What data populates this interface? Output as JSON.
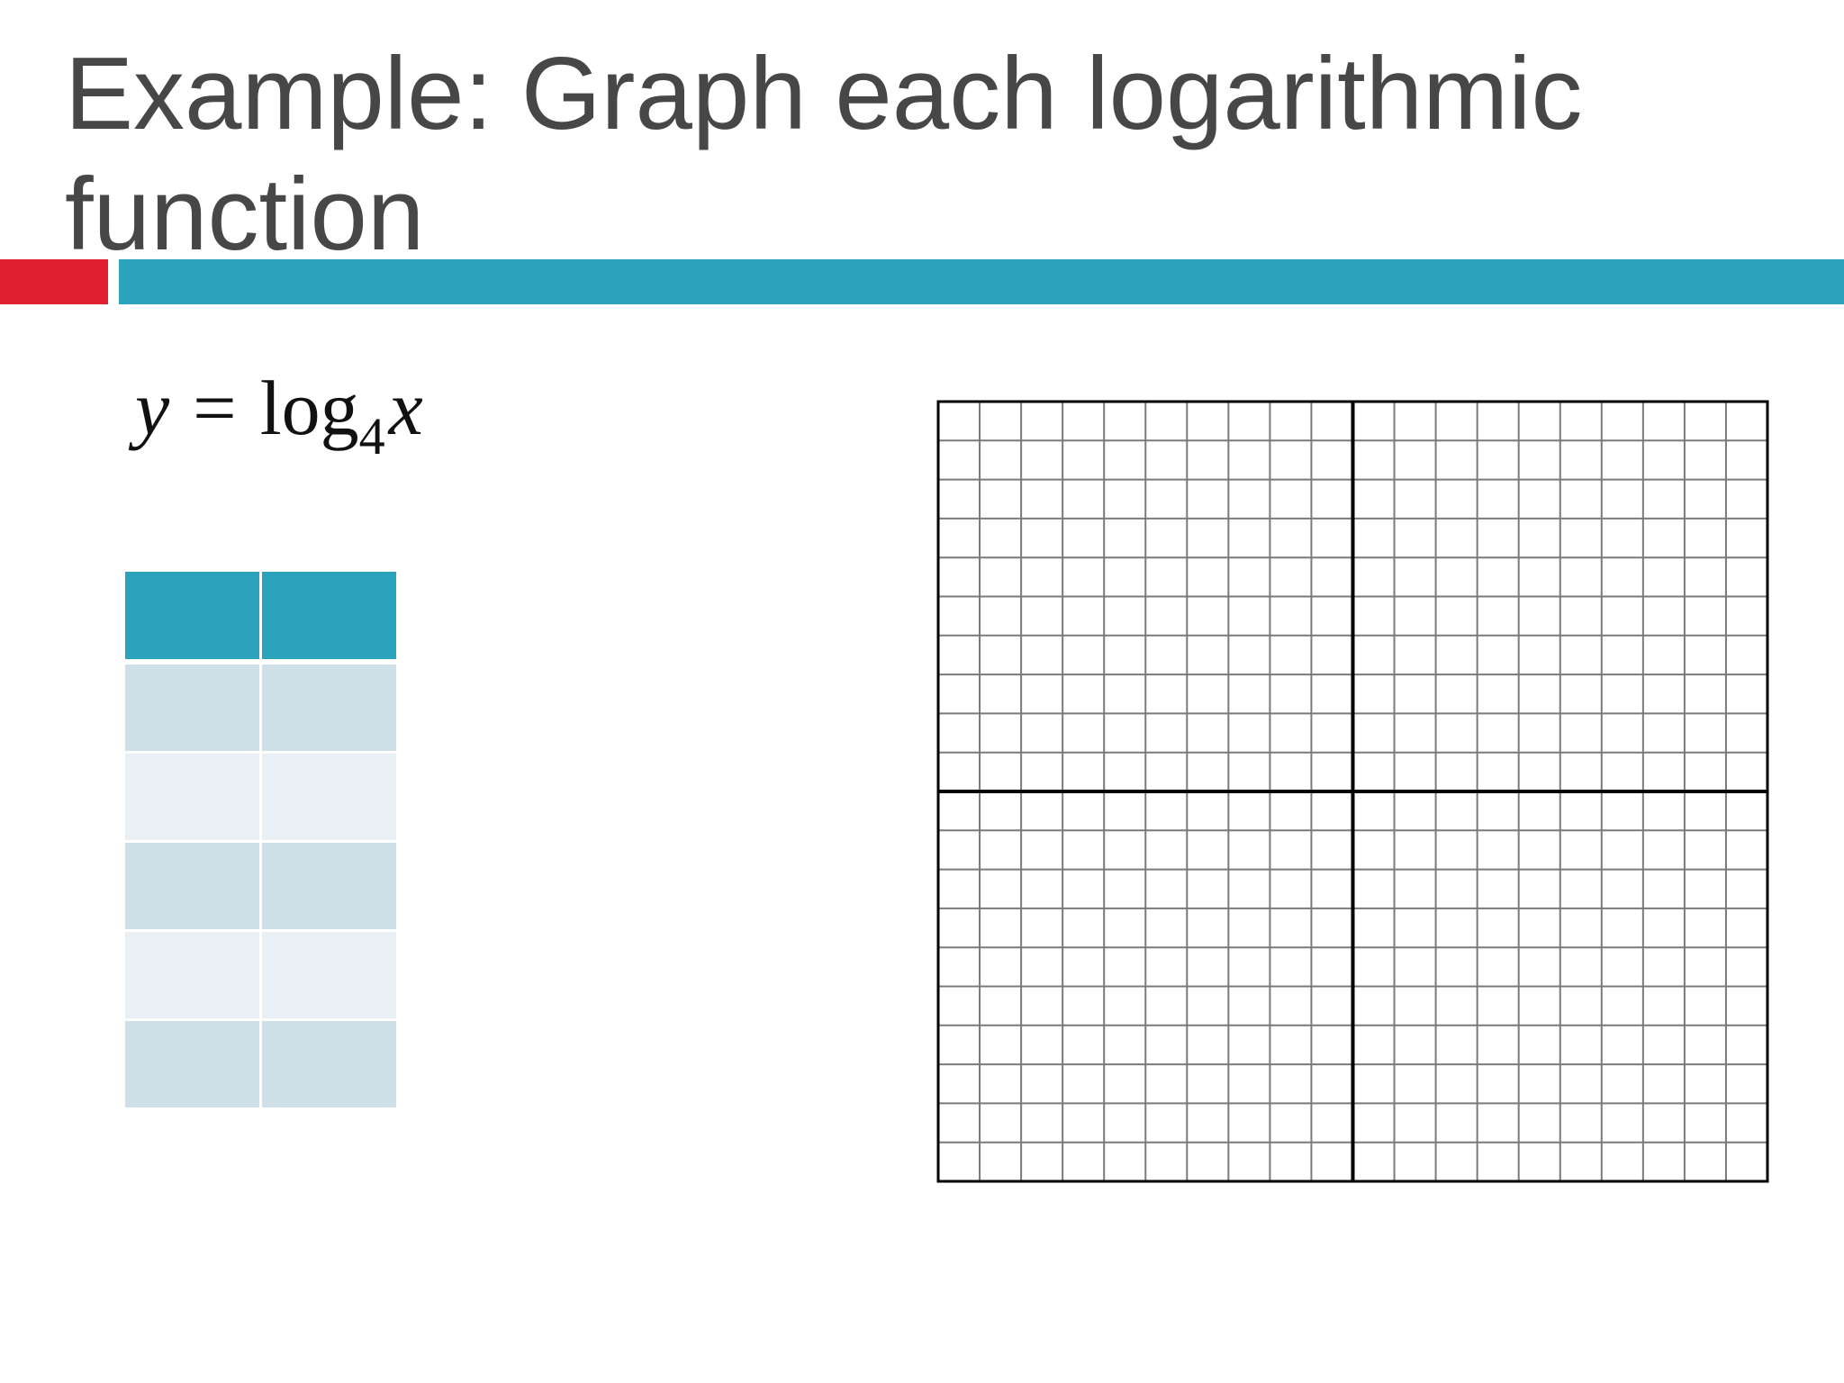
{
  "slide": {
    "title": "Example: Graph each logarithmic function"
  },
  "equation": {
    "lhs": "y",
    "equals": "=",
    "func": "log",
    "base": "4",
    "arg": "x"
  },
  "table": {
    "headers": [
      "",
      ""
    ],
    "rows": [
      [
        "",
        ""
      ],
      [
        "",
        ""
      ],
      [
        "",
        ""
      ],
      [
        "",
        ""
      ],
      [
        "",
        ""
      ]
    ]
  },
  "graph": {
    "grid_columns": 20,
    "grid_rows": 20,
    "grid_on": true,
    "colors": {
      "grid_line": "#7a7a7a",
      "axis_line": "#000000"
    }
  },
  "colors": {
    "title_text": "#474747",
    "accent_red": "#e01f2f",
    "accent_teal": "#2ba3bd",
    "table_header": "#2ba3bd",
    "table_row_dark": "#cddfe7",
    "table_row_light": "#e8eff5"
  }
}
